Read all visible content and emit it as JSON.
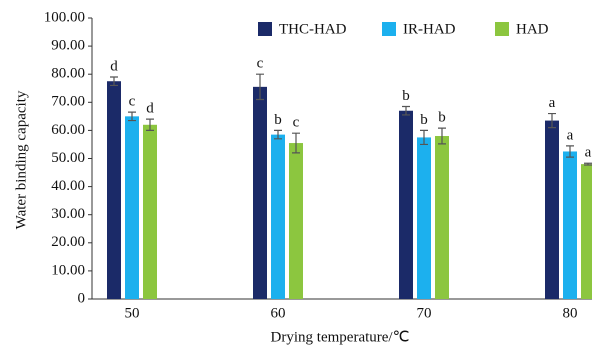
{
  "chart_data": {
    "type": "bar",
    "x_label": "Drying temperature/℃",
    "y_label": "Water binding capacity",
    "categories": [
      "50",
      "60",
      "70",
      "80"
    ],
    "series": [
      {
        "name": "THC-HAD",
        "color": "#1b2a68",
        "values": [
          77.5,
          75.5,
          67,
          63.5
        ],
        "errors": [
          1.5,
          4.5,
          1.5,
          2.5
        ],
        "letters": [
          "d",
          "c",
          "b",
          "a"
        ]
      },
      {
        "name": "IR-HAD",
        "color": "#1cb0ee",
        "values": [
          65,
          58.5,
          57.5,
          52.5
        ],
        "errors": [
          1.5,
          1.5,
          2.5,
          2
        ],
        "letters": [
          "c",
          "b",
          "b",
          "a"
        ]
      },
      {
        "name": "HAD",
        "color": "#8cc63f",
        "values": [
          62,
          55.5,
          58,
          48
        ],
        "errors": [
          2,
          3.5,
          2.8,
          0.3
        ],
        "letters": [
          "d",
          "c",
          "b",
          "a"
        ]
      }
    ],
    "ylim": [
      0,
      100
    ],
    "yticks": [
      0,
      {
        "value": 10,
        "label": "10.00"
      },
      {
        "value": 20,
        "label": "20.00"
      },
      {
        "value": 30,
        "label": "30.00"
      },
      {
        "value": 40,
        "label": "40.00"
      },
      {
        "value": 50,
        "label": "50.00"
      },
      {
        "value": 60,
        "label": "60.00"
      },
      {
        "value": 70,
        "label": "70.00"
      },
      {
        "value": 80,
        "label": "80.00"
      },
      {
        "value": 90,
        "label": "90.00"
      },
      {
        "value": 100,
        "label": "100.00"
      }
    ],
    "legend": "top-right"
  }
}
